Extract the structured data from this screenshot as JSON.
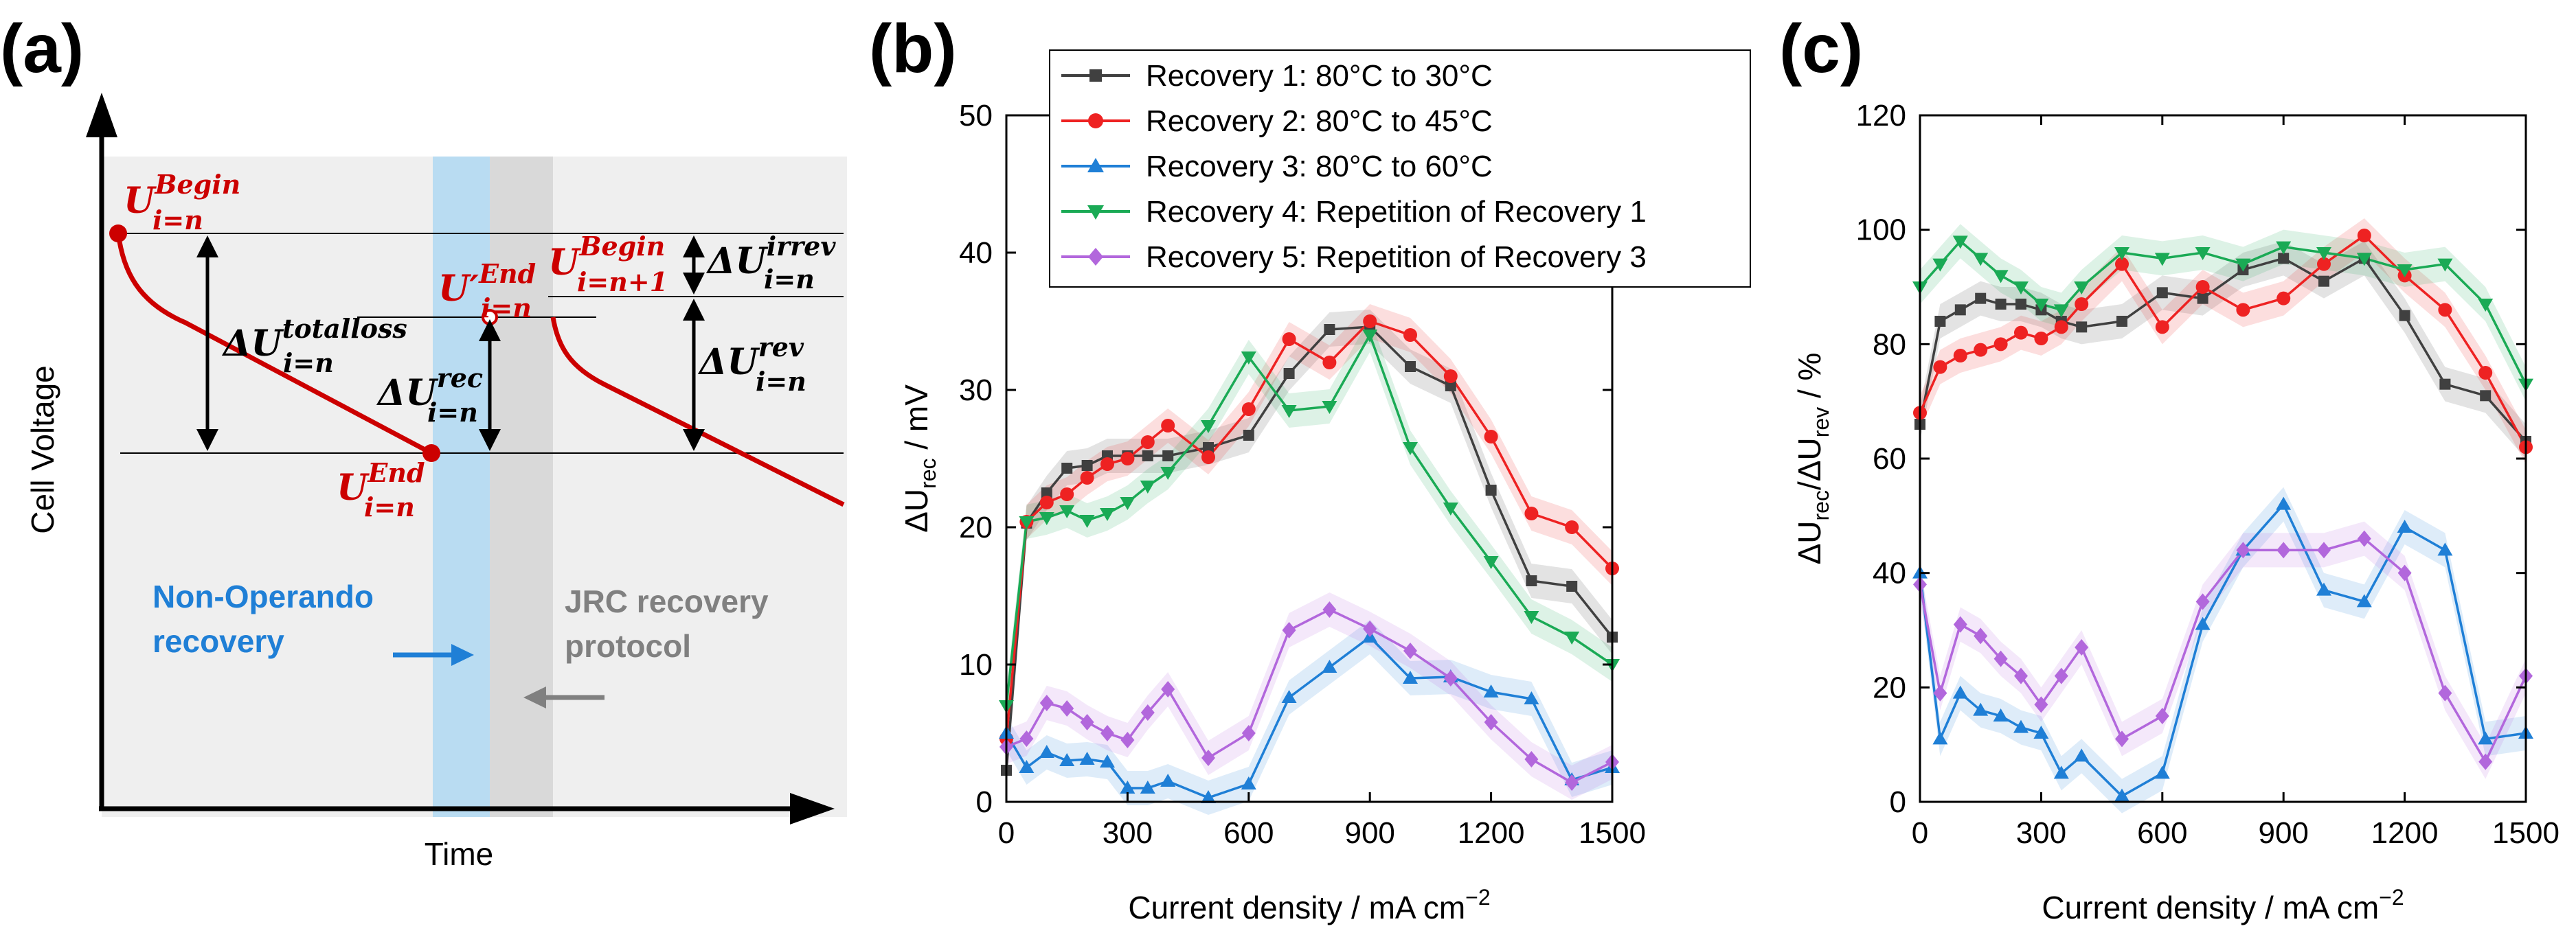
{
  "panels": {
    "a": {
      "label": "(a)",
      "ylabel": "Cell Voltage",
      "xlabel": "Time",
      "non_operando": "Non-Operando",
      "non_operando2": "recovery",
      "jrc": "JRC recovery",
      "jrc2": "protocol",
      "u_begin_sym": "U",
      "u_begin_sup": "Begin",
      "u_begin_sub": "i=n",
      "u_end_sym": "U",
      "u_end_sup": "End",
      "u_end_sub": "i=n",
      "u_prime_sym": "U′",
      "u_prime_sup": "End",
      "u_prime_sub": "i=n",
      "u_begin2_sym": "U",
      "u_begin2_sup": "Begin",
      "u_begin2_sub": "i=n+1",
      "d_total_sym": "ΔU",
      "d_total_sup": "totalloss",
      "d_total_sub": "i=n",
      "d_rec_sym": "ΔU",
      "d_rec_sup": "rec",
      "d_rec_sub": "i=n",
      "d_irrev_sym": "ΔU",
      "d_irrev_sup": "irrev",
      "d_irrev_sub": "i=n",
      "d_rev_sym": "ΔU",
      "d_rev_sup": "rev",
      "d_rev_sub": "i=n",
      "colors": {
        "red": "#cc0000",
        "blue": "#1f7fd6",
        "gray": "#808080",
        "band_blue": "#b9dcf2",
        "band_gray": "#d9d9d9",
        "bg": "#efefef"
      }
    },
    "b": {
      "label": "(b)"
    },
    "c": {
      "label": "(c)"
    }
  },
  "chart_data": [
    {
      "type": "line",
      "panel": "b",
      "title": "",
      "xlabel_main": "Current density / mA cm",
      "xlabel_sup": "−2",
      "ylabel_main": "ΔU",
      "ylabel_sub": "rec",
      "ylabel_tail": " / mV",
      "xlim": [
        0,
        1500
      ],
      "ylim": [
        0,
        50
      ],
      "xticks": [
        0,
        300,
        600,
        900,
        1200,
        1500
      ],
      "yticks": [
        0,
        10,
        20,
        30,
        40,
        50
      ],
      "x": [
        0,
        50,
        100,
        150,
        200,
        250,
        300,
        350,
        400,
        500,
        600,
        700,
        800,
        900,
        1000,
        1100,
        1200,
        1300,
        1400,
        1500
      ],
      "legend_position": "top-right",
      "series": [
        {
          "name": "Recovery 1: 80°C to 30°C",
          "color": "#404040",
          "marker": "square",
          "values": [
            2.3,
            20.3,
            22.5,
            24.3,
            24.5,
            25.2,
            25.2,
            25.2,
            25.2,
            25.8,
            26.7,
            31.2,
            34.4,
            34.6,
            31.7,
            30.3,
            22.7,
            16.1,
            15.7,
            12.0
          ]
        },
        {
          "name": "Recovery 2: 80°C to 45°C",
          "color": "#ee2222",
          "marker": "circle",
          "values": [
            4.6,
            20.4,
            21.8,
            22.4,
            23.6,
            24.6,
            25.0,
            26.2,
            27.4,
            25.1,
            28.6,
            33.7,
            32.0,
            35.0,
            34.0,
            31.0,
            26.6,
            21.0,
            20.0,
            17.0
          ]
        },
        {
          "name": "Recovery 3: 80°C to 60°C",
          "color": "#1f7fd6",
          "marker": "triangle-up",
          "values": [
            5.0,
            2.5,
            3.6,
            3.0,
            3.1,
            2.9,
            1.0,
            1.0,
            1.5,
            0.3,
            1.3,
            7.6,
            9.8,
            12.0,
            9.0,
            9.1,
            8.0,
            7.5,
            1.6,
            2.5
          ]
        },
        {
          "name": "Recovery 4: Repetition of Recovery 1",
          "color": "#1aaa55",
          "marker": "triangle-down",
          "values": [
            7.0,
            20.4,
            20.7,
            21.2,
            20.5,
            21.0,
            21.8,
            23.0,
            24.0,
            27.4,
            32.4,
            28.5,
            28.8,
            34.0,
            25.8,
            21.4,
            17.5,
            13.5,
            12.0,
            10.0
          ]
        },
        {
          "name": "Recovery 5: Repetition of Recovery 3",
          "color": "#b267dc",
          "marker": "diamond",
          "values": [
            4.0,
            4.6,
            7.2,
            6.8,
            5.8,
            5.0,
            4.5,
            6.5,
            8.2,
            3.2,
            5.0,
            12.5,
            14.0,
            12.6,
            11.0,
            9.0,
            5.8,
            3.1,
            1.4,
            2.9
          ]
        }
      ]
    },
    {
      "type": "line",
      "panel": "c",
      "title": "",
      "xlabel_main": "Current density / mA cm",
      "xlabel_sup": "−2",
      "ylabel_main": "ΔU",
      "ylabel_sub": "rec",
      "ylabel_mid": "/ΔU",
      "ylabel_sub2": "rev",
      "ylabel_tail": " / %",
      "xlim": [
        0,
        1500
      ],
      "ylim": [
        0,
        120
      ],
      "xticks": [
        0,
        300,
        600,
        900,
        1200,
        1500
      ],
      "yticks": [
        0,
        20,
        40,
        60,
        80,
        100,
        120
      ],
      "x": [
        0,
        50,
        100,
        150,
        200,
        250,
        300,
        350,
        400,
        500,
        600,
        700,
        800,
        900,
        1000,
        1100,
        1200,
        1300,
        1400,
        1500
      ],
      "series": [
        {
          "name": "Recovery 1",
          "color": "#404040",
          "marker": "square",
          "values": [
            66,
            84,
            86,
            88,
            87,
            87,
            86,
            84,
            83,
            84,
            89,
            88,
            93,
            95,
            91,
            95,
            85,
            73,
            71,
            63
          ]
        },
        {
          "name": "Recovery 2",
          "color": "#ee2222",
          "marker": "circle",
          "values": [
            68,
            76,
            78,
            79,
            80,
            82,
            81,
            83,
            87,
            94,
            83,
            90,
            86,
            88,
            94,
            99,
            92,
            86,
            75,
            62
          ]
        },
        {
          "name": "Recovery 3",
          "color": "#1f7fd6",
          "marker": "triangle-up",
          "values": [
            40,
            11,
            19,
            16,
            15,
            13,
            12,
            5,
            8,
            1,
            5,
            31,
            44,
            52,
            37,
            35,
            48,
            44,
            11,
            12
          ]
        },
        {
          "name": "Recovery 4",
          "color": "#1aaa55",
          "marker": "triangle-down",
          "values": [
            90,
            94,
            98,
            95,
            92,
            90,
            87,
            86,
            90,
            96,
            95,
            96,
            94,
            97,
            96,
            95,
            93,
            94,
            87,
            73
          ]
        },
        {
          "name": "Recovery 5",
          "color": "#b267dc",
          "marker": "diamond",
          "values": [
            38,
            19,
            31,
            29,
            25,
            22,
            17,
            22,
            27,
            11,
            15,
            35,
            44,
            44,
            44,
            46,
            40,
            19,
            7,
            22
          ]
        }
      ]
    }
  ]
}
